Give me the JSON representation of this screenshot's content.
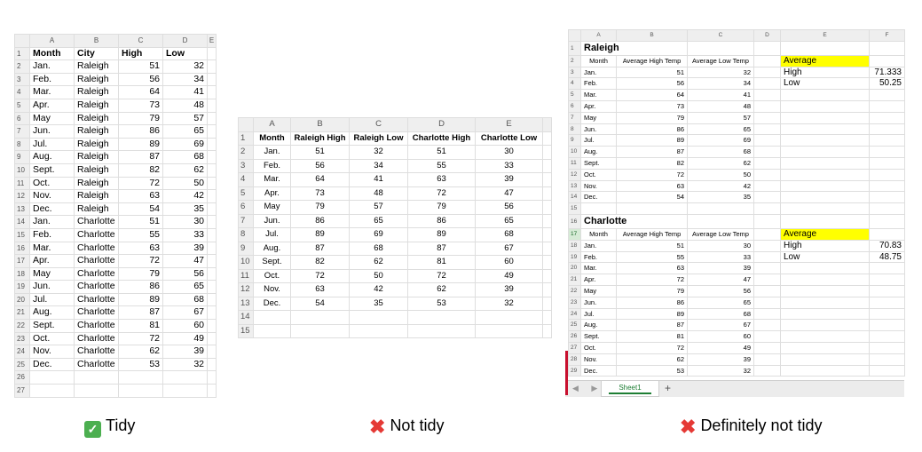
{
  "panel1": {
    "cols": [
      "A",
      "B",
      "C",
      "D",
      "E"
    ],
    "headers": [
      "Month",
      "City",
      "High",
      "Low"
    ],
    "rows": [
      [
        "Jan.",
        "Raleigh",
        "51",
        "32"
      ],
      [
        "Feb.",
        "Raleigh",
        "56",
        "34"
      ],
      [
        "Mar.",
        "Raleigh",
        "64",
        "41"
      ],
      [
        "Apr.",
        "Raleigh",
        "73",
        "48"
      ],
      [
        "May",
        "Raleigh",
        "79",
        "57"
      ],
      [
        "Jun.",
        "Raleigh",
        "86",
        "65"
      ],
      [
        "Jul.",
        "Raleigh",
        "89",
        "69"
      ],
      [
        "Aug.",
        "Raleigh",
        "87",
        "68"
      ],
      [
        "Sept.",
        "Raleigh",
        "82",
        "62"
      ],
      [
        "Oct.",
        "Raleigh",
        "72",
        "50"
      ],
      [
        "Nov.",
        "Raleigh",
        "63",
        "42"
      ],
      [
        "Dec.",
        "Raleigh",
        "54",
        "35"
      ],
      [
        "Jan.",
        "Charlotte",
        "51",
        "30"
      ],
      [
        "Feb.",
        "Charlotte",
        "55",
        "33"
      ],
      [
        "Mar.",
        "Charlotte",
        "63",
        "39"
      ],
      [
        "Apr.",
        "Charlotte",
        "72",
        "47"
      ],
      [
        "May",
        "Charlotte",
        "79",
        "56"
      ],
      [
        "Jun.",
        "Charlotte",
        "86",
        "65"
      ],
      [
        "Jul.",
        "Charlotte",
        "89",
        "68"
      ],
      [
        "Aug.",
        "Charlotte",
        "87",
        "67"
      ],
      [
        "Sept.",
        "Charlotte",
        "81",
        "60"
      ],
      [
        "Oct.",
        "Charlotte",
        "72",
        "49"
      ],
      [
        "Nov.",
        "Charlotte",
        "62",
        "39"
      ],
      [
        "Dec.",
        "Charlotte",
        "53",
        "32"
      ]
    ],
    "caption": "Tidy"
  },
  "panel2": {
    "cols": [
      "A",
      "B",
      "C",
      "D",
      "E"
    ],
    "headers": [
      "Month",
      "Raleigh High",
      "Raleigh Low",
      "Charlotte High",
      "Charlotte Low"
    ],
    "rows": [
      [
        "Jan.",
        "51",
        "32",
        "51",
        "30"
      ],
      [
        "Feb.",
        "56",
        "34",
        "55",
        "33"
      ],
      [
        "Mar.",
        "64",
        "41",
        "63",
        "39"
      ],
      [
        "Apr.",
        "73",
        "48",
        "72",
        "47"
      ],
      [
        "May",
        "79",
        "57",
        "79",
        "56"
      ],
      [
        "Jun.",
        "86",
        "65",
        "86",
        "65"
      ],
      [
        "Jul.",
        "89",
        "69",
        "89",
        "68"
      ],
      [
        "Aug.",
        "87",
        "68",
        "87",
        "67"
      ],
      [
        "Sept.",
        "82",
        "62",
        "81",
        "60"
      ],
      [
        "Oct.",
        "72",
        "50",
        "72",
        "49"
      ],
      [
        "Nov.",
        "63",
        "42",
        "62",
        "39"
      ],
      [
        "Dec.",
        "54",
        "35",
        "53",
        "32"
      ]
    ],
    "caption": "Not tidy"
  },
  "panel3": {
    "cols": [
      "A",
      "B",
      "C",
      "D",
      "E",
      "F"
    ],
    "raleigh_title": "Raleigh",
    "charlotte_title": "Charlotte",
    "col_headers": [
      "Month",
      "Average High Temp",
      "Average Low Temp"
    ],
    "raleigh_rows": [
      [
        "Jan.",
        "51",
        "32"
      ],
      [
        "Feb.",
        "56",
        "34"
      ],
      [
        "Mar.",
        "64",
        "41"
      ],
      [
        "Apr.",
        "73",
        "48"
      ],
      [
        "May",
        "79",
        "57"
      ],
      [
        "Jun.",
        "86",
        "65"
      ],
      [
        "Jul.",
        "89",
        "69"
      ],
      [
        "Aug.",
        "87",
        "68"
      ],
      [
        "Sept.",
        "82",
        "62"
      ],
      [
        "Oct.",
        "72",
        "50"
      ],
      [
        "Nov.",
        "63",
        "42"
      ],
      [
        "Dec.",
        "54",
        "35"
      ]
    ],
    "charlotte_rows": [
      [
        "Jan.",
        "51",
        "30"
      ],
      [
        "Feb.",
        "55",
        "33"
      ],
      [
        "Mar.",
        "63",
        "39"
      ],
      [
        "Apr.",
        "72",
        "47"
      ],
      [
        "May",
        "79",
        "56"
      ],
      [
        "Jun.",
        "86",
        "65"
      ],
      [
        "Jul.",
        "89",
        "68"
      ],
      [
        "Aug.",
        "87",
        "67"
      ],
      [
        "Sept.",
        "81",
        "60"
      ],
      [
        "Oct.",
        "72",
        "49"
      ],
      [
        "Nov.",
        "62",
        "39"
      ],
      [
        "Dec.",
        "53",
        "32"
      ]
    ],
    "avg_label": "Average",
    "high_label": "High",
    "low_label": "Low",
    "raleigh_high": "71.333",
    "raleigh_low": "50.25",
    "charlotte_high": "70.83",
    "charlotte_low": "48.75",
    "sheet_tab": "Sheet1",
    "add_tab": "+",
    "caption": "Definitely not tidy"
  },
  "colors": {
    "check_green": "#4caf50",
    "cross_red": "#e53935",
    "highlight_yellow": "#ffff00"
  }
}
